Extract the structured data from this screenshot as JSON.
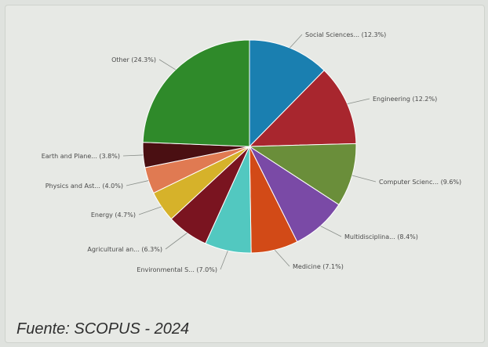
{
  "caption": "Fuente: SCOPUS - 2024",
  "chart_data": {
    "type": "pie",
    "title": "",
    "start_angle_deg": 0,
    "direction": "clockwise",
    "slices": [
      {
        "label": "Social Sciences... (12.3%)",
        "value": 12.3,
        "color": "#1a7fb0"
      },
      {
        "label": "Engineering (12.2%)",
        "value": 12.2,
        "color": "#a8262e"
      },
      {
        "label": "Computer Scienc... (9.6%)",
        "value": 9.6,
        "color": "#6a8e3a"
      },
      {
        "label": "Multidisciplina... (8.4%)",
        "value": 8.4,
        "color": "#7a4aa6"
      },
      {
        "label": "Medicine (7.1%)",
        "value": 7.1,
        "color": "#d24a17"
      },
      {
        "label": "Environmental S... (7.0%)",
        "value": 7.0,
        "color": "#52c8c0"
      },
      {
        "label": "Agricultural an... (6.3%)",
        "value": 6.3,
        "color": "#7a1420"
      },
      {
        "label": "Energy (4.7%)",
        "value": 4.7,
        "color": "#d6b22a"
      },
      {
        "label": "Physics and Ast... (4.0%)",
        "value": 4.0,
        "color": "#e07a52"
      },
      {
        "label": "Earth and Plane... (3.8%)",
        "value": 3.8,
        "color": "#4a0f12"
      },
      {
        "label": "Other (24.3%)",
        "value": 24.3,
        "color": "#2f8a2a"
      }
    ]
  }
}
